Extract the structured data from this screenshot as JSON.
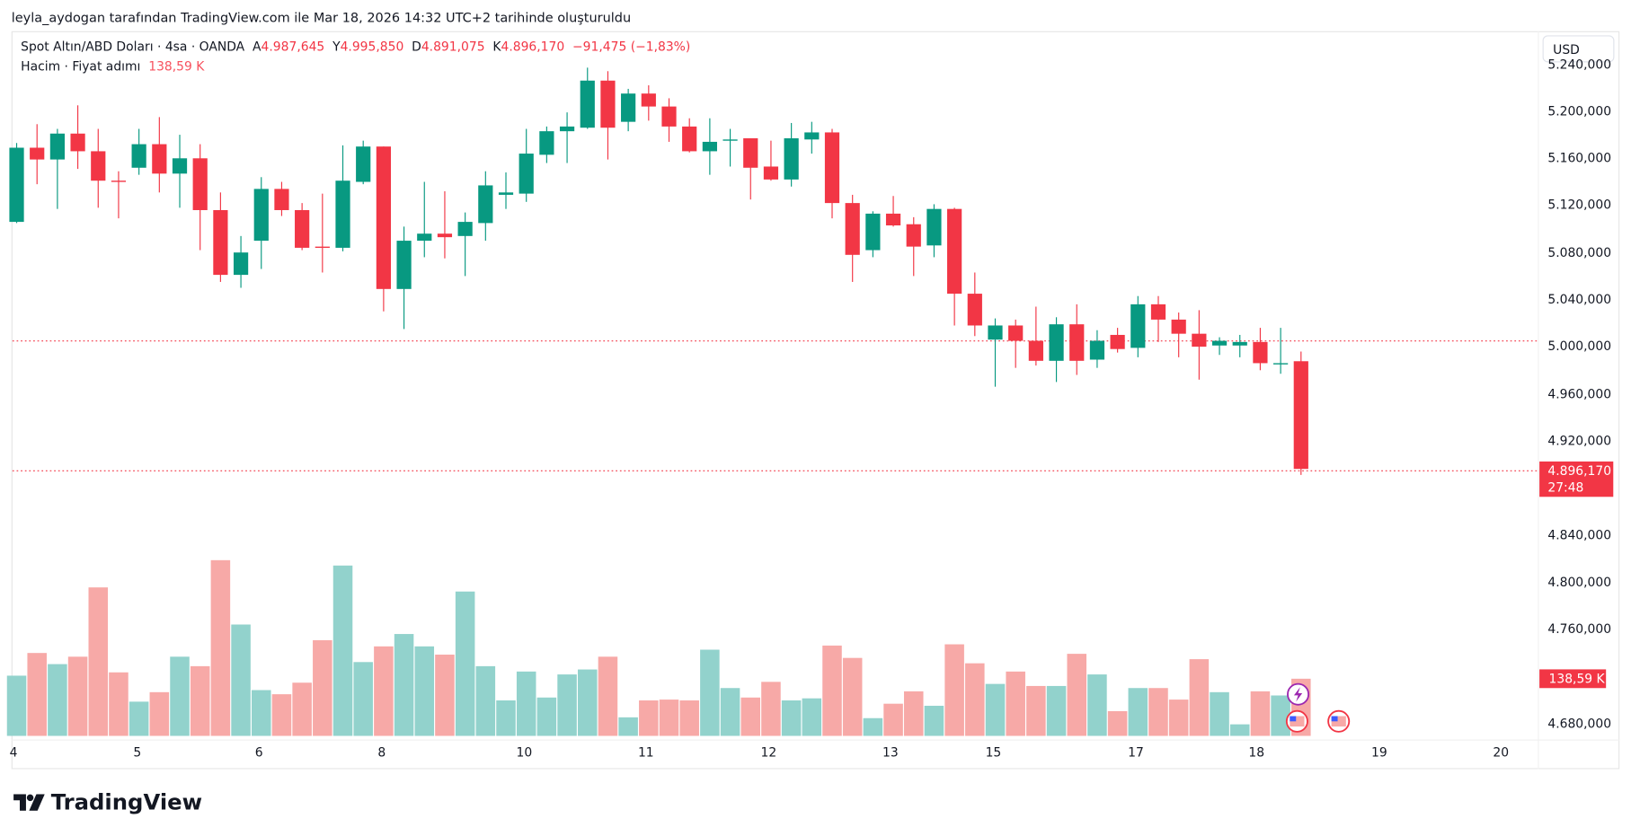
{
  "credit": "leyla_aydogan tarafından TradingView.com ile Mar 18, 2026 14:32 UTC+2 tarihinde oluşturuldu",
  "legend": {
    "symbol": "Spot Altın/ABD Doları · 4sa · OANDA",
    "o_label": "A",
    "o": "4.987,645",
    "h_label": "Y",
    "h": "4.995,850",
    "l_label": "D",
    "l": "4.891,075",
    "c_label": "K",
    "c": "4.896,170",
    "change": "−91,475 (−1,83%)",
    "volume_title": "Hacim · Fiyat adımı",
    "volume_value": "138,59 K"
  },
  "currency_button": "USD",
  "price_axis": [
    "5.240,000",
    "5.200,000",
    "5.160,000",
    "5.120,000",
    "5.080,000",
    "5.040,000",
    "5.000,000",
    "4.960,000",
    "4.920,000",
    "4.840,000",
    "4.800,000",
    "4.760,000",
    "4.680,000"
  ],
  "last_price_tag": {
    "price": "4.896,170",
    "countdown": "27:48"
  },
  "volume_tag": "138,59 K",
  "time_axis": [
    "4",
    "5",
    "6",
    "8",
    "10",
    "11",
    "12",
    "13",
    "15",
    "17",
    "18",
    "19",
    "20"
  ],
  "logo": "TradingView",
  "colors": {
    "up": "#089981",
    "down": "#f23645",
    "vol_up": "#92d2cc",
    "vol_down": "#f7a9a7"
  },
  "chart_data": {
    "type": "candlestick",
    "timeframe": "4h",
    "ylim": [
      4670,
      5250
    ],
    "reference_line": 5004,
    "ohlc": [
      [
        5106,
        5173,
        5105,
        5169
      ],
      [
        5169,
        5189,
        5138,
        5159
      ],
      [
        5159,
        5185,
        5117,
        5181
      ],
      [
        5181,
        5205,
        5151,
        5166
      ],
      [
        5166,
        5185,
        5118,
        5141
      ],
      [
        5141,
        5149,
        5109,
        5140
      ],
      [
        5152,
        5185,
        5146,
        5172
      ],
      [
        5172,
        5195,
        5131,
        5147
      ],
      [
        5147,
        5180,
        5118,
        5160
      ],
      [
        5160,
        5172,
        5082,
        5116
      ],
      [
        5116,
        5131,
        5055,
        5061
      ],
      [
        5061,
        5094,
        5050,
        5080
      ],
      [
        5090,
        5144,
        5066,
        5134
      ],
      [
        5134,
        5140,
        5111,
        5116
      ],
      [
        5116,
        5122,
        5082,
        5084
      ],
      [
        5085,
        5130,
        5063,
        5084
      ],
      [
        5084,
        5171,
        5081,
        5141
      ],
      [
        5140,
        5175,
        5138,
        5170
      ],
      [
        5170,
        5170,
        5030,
        5049
      ],
      [
        5049,
        5102,
        5015,
        5090
      ],
      [
        5090,
        5140,
        5076,
        5096
      ],
      [
        5096,
        5132,
        5075,
        5093
      ],
      [
        5094,
        5114,
        5060,
        5106
      ],
      [
        5105,
        5149,
        5090,
        5137
      ],
      [
        5129,
        5148,
        5117,
        5131
      ],
      [
        5130,
        5185,
        5123,
        5164
      ],
      [
        5163,
        5187,
        5156,
        5183
      ],
      [
        5183,
        5199,
        5156,
        5187
      ],
      [
        5186,
        5237,
        5185,
        5226
      ],
      [
        5226,
        5234,
        5159,
        5186
      ],
      [
        5191,
        5219,
        5183,
        5215
      ],
      [
        5215,
        5222,
        5192,
        5204
      ],
      [
        5204,
        5211,
        5174,
        5187
      ],
      [
        5187,
        5194,
        5165,
        5166
      ],
      [
        5166,
        5194,
        5146,
        5174
      ],
      [
        5175,
        5185,
        5153,
        5176
      ],
      [
        5177,
        5177,
        5125,
        5152
      ],
      [
        5153,
        5175,
        5141,
        5142
      ],
      [
        5142,
        5190,
        5136,
        5177
      ],
      [
        5176,
        5191,
        5164,
        5182
      ],
      [
        5182,
        5185,
        5109,
        5122
      ],
      [
        5122,
        5129,
        5055,
        5078
      ],
      [
        5082,
        5115,
        5076,
        5113
      ],
      [
        5113,
        5128,
        5102,
        5103
      ],
      [
        5104,
        5110,
        5060,
        5085
      ],
      [
        5086,
        5121,
        5076,
        5117
      ],
      [
        5117,
        5118,
        5018,
        5045
      ],
      [
        5045,
        5063,
        5009,
        5018
      ],
      [
        5006,
        5024,
        4966,
        5018
      ],
      [
        5018,
        5023,
        4982,
        5005
      ],
      [
        5005,
        5034,
        4984,
        4988
      ],
      [
        4988,
        5025,
        4970,
        5019
      ],
      [
        5019,
        5036,
        4976,
        4988
      ],
      [
        4989,
        5014,
        4982,
        5005
      ],
      [
        5010,
        5016,
        4995,
        4998
      ],
      [
        4999,
        5043,
        4991,
        5036
      ],
      [
        5036,
        5043,
        5004,
        5023
      ],
      [
        5023,
        5029,
        4991,
        5011
      ],
      [
        5011,
        5031,
        4972,
        5000
      ],
      [
        5001,
        5008,
        4993,
        5005
      ],
      [
        5001,
        5010,
        4991,
        5004
      ],
      [
        5004,
        5016,
        4980,
        4986
      ],
      [
        4985,
        5016,
        4977,
        4986
      ],
      [
        4987.645,
        4995.85,
        4891.075,
        4896.17
      ]
    ],
    "volume_k": [
      146,
      201,
      174,
      192,
      360,
      154,
      83,
      106,
      192,
      169,
      426,
      270,
      111,
      101,
      129,
      232,
      413,
      179,
      217,
      247,
      217,
      197,
      350,
      169,
      86,
      156,
      93,
      149,
      161,
      192,
      45,
      86,
      88,
      86,
      209,
      116,
      93,
      131,
      86,
      91,
      219,
      189,
      43,
      78,
      108,
      73,
      222,
      176,
      126,
      156,
      121,
      121,
      199,
      149,
      60,
      116,
      116,
      88,
      186,
      106,
      28,
      108,
      98,
      138.59
    ]
  }
}
